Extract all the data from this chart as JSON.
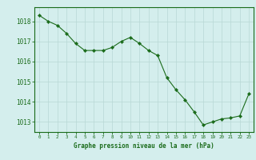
{
  "x": [
    0,
    1,
    2,
    3,
    4,
    5,
    6,
    7,
    8,
    9,
    10,
    11,
    12,
    13,
    14,
    15,
    16,
    17,
    18,
    19,
    20,
    21,
    22,
    23
  ],
  "y": [
    1018.3,
    1018.0,
    1017.8,
    1017.4,
    1016.9,
    1016.55,
    1016.55,
    1016.55,
    1016.7,
    1017.0,
    1017.2,
    1016.9,
    1016.55,
    1016.3,
    1015.2,
    1014.6,
    1014.1,
    1013.5,
    1012.85,
    1013.0,
    1013.15,
    1013.2,
    1013.3,
    1014.4
  ],
  "line_color": "#1a6b1a",
  "marker_color": "#1a6b1a",
  "bg_color": "#d4eeed",
  "grid_color": "#b8d8d5",
  "grid_color_minor": "#e0f0ee",
  "title": "Graphe pression niveau de la mer (hPa)",
  "ylabel_ticks": [
    1013,
    1014,
    1015,
    1016,
    1017,
    1018
  ],
  "ylim": [
    1012.5,
    1018.7
  ],
  "xlim": [
    -0.5,
    23.5
  ],
  "xtick_labels": [
    "0",
    "1",
    "2",
    "3",
    "4",
    "5",
    "6",
    "7",
    "8",
    "9",
    "10",
    "11",
    "12",
    "13",
    "14",
    "15",
    "16",
    "17",
    "18",
    "19",
    "20",
    "21",
    "22",
    "23"
  ]
}
